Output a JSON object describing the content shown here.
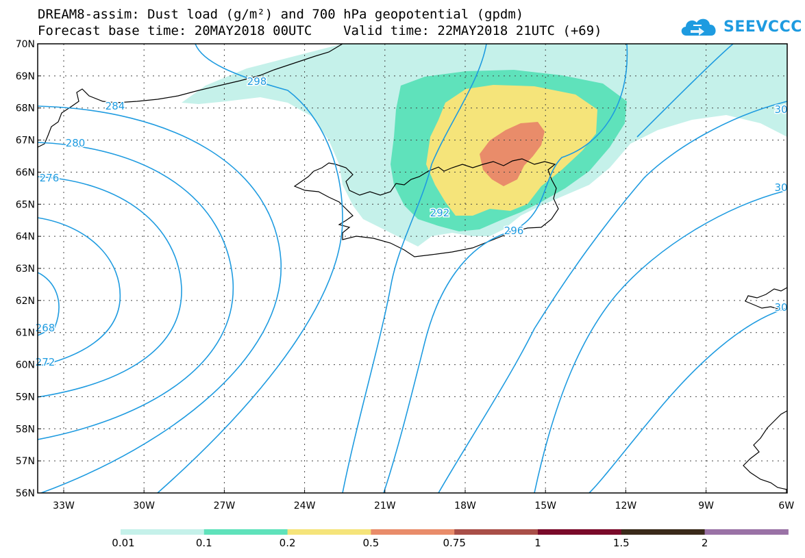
{
  "header": {
    "line1": "DREAM8-assim: Dust load (g/m²) and 700 hPa geopotential (gpdm)",
    "line2": "Forecast base time: 20MAY2018 00UTC    Valid time: 22MAY2018 21UTC (+69)"
  },
  "logo": {
    "text": "SEEVCCC",
    "icon": "cloud-icon",
    "color": "#1e9be0"
  },
  "map": {
    "lat_labels": [
      "70N",
      "69N",
      "68N",
      "67N",
      "66N",
      "65N",
      "64N",
      "63N",
      "62N",
      "61N",
      "60N",
      "59N",
      "58N",
      "57N",
      "56N"
    ],
    "lon_labels": [
      "33W",
      "30W",
      "27W",
      "24W",
      "21W",
      "18W",
      "15W",
      "12W",
      "9W",
      "6W"
    ],
    "contour_labels": [
      "298",
      "284",
      "280",
      "276",
      "268",
      "272",
      "292",
      "296",
      "30",
      "30",
      "30"
    ],
    "contour_color": "#1e9be0"
  },
  "colorbar": {
    "colors": [
      "#c5f1ea",
      "#5fe2bb",
      "#f5e47a",
      "#e98c6a",
      "#a94f48",
      "#7a0a2a",
      "#3a2a1a",
      "#9a72a6"
    ],
    "labels": [
      "0.01",
      "0.1",
      "0.2",
      "0.5",
      "0.75",
      "1",
      "1.5",
      "2"
    ]
  }
}
